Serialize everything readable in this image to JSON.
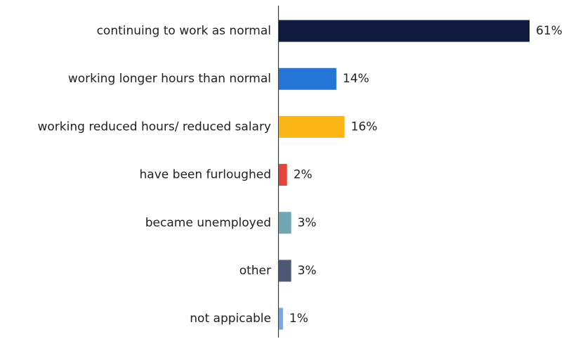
{
  "chart_data": {
    "type": "bar",
    "orientation": "horizontal",
    "categories": [
      "continuing to work as normal",
      "working longer hours than normal",
      "working reduced hours/ reduced salary",
      "have been furloughed",
      "became unemployed",
      "other",
      "not appicable"
    ],
    "values": [
      61,
      14,
      16,
      2,
      3,
      3,
      1
    ],
    "value_labels": [
      "61%",
      "14%",
      "16%",
      "2%",
      "3%",
      "3%",
      "1%"
    ],
    "colors": [
      "#0f1a3c",
      "#2475d6",
      "#fbb615",
      "#e0463a",
      "#6fa8b4",
      "#4d5877",
      "#7aa6e2"
    ],
    "xlim": [
      0,
      61
    ],
    "grid": false,
    "legend": "none"
  }
}
